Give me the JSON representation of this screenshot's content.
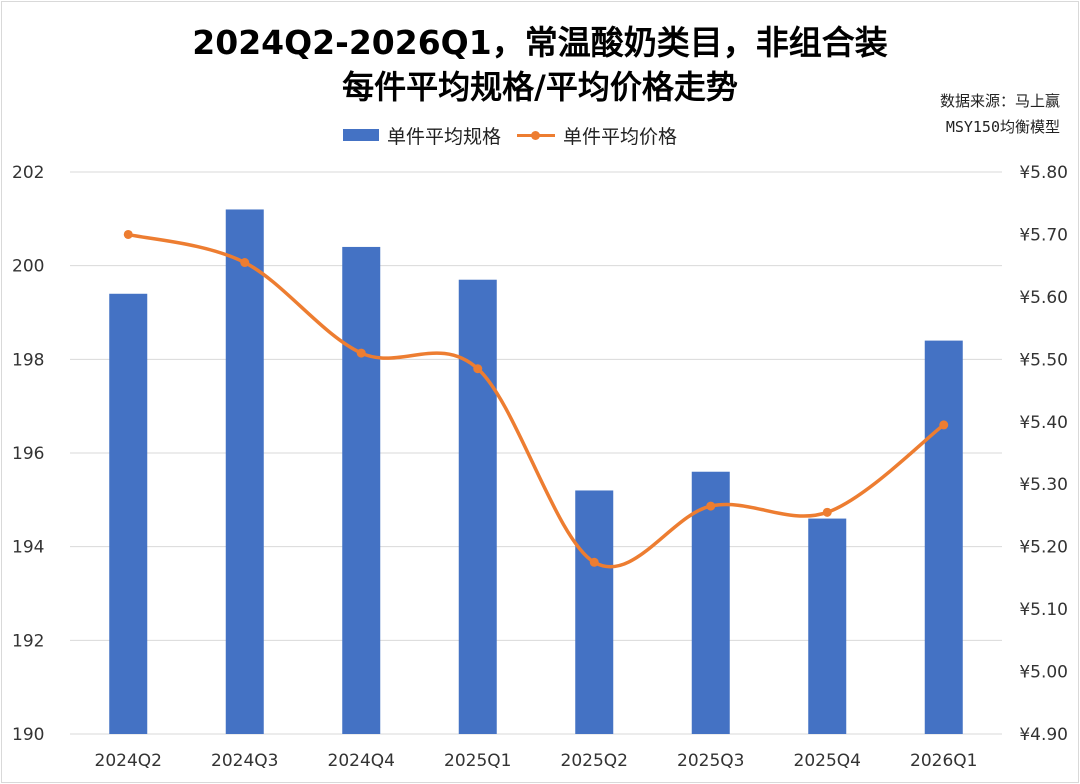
{
  "title": {
    "line1": "2024Q2-2026Q1，常温酸奶类目，非组合装",
    "line2": "每件平均规格/平均价格走势"
  },
  "source": {
    "line1": "数据来源：马上赢",
    "line2": "MSY150均衡模型"
  },
  "legend": {
    "bar_label": "单件平均规格",
    "line_label": "单件平均价格"
  },
  "colors": {
    "bar": "#4472c4",
    "line": "#ed7d31",
    "grid": "#d9d9d9"
  },
  "chart_data": {
    "type": "bar",
    "categories": [
      "2024Q2",
      "2024Q3",
      "2024Q4",
      "2025Q1",
      "2025Q2",
      "2025Q3",
      "2025Q4",
      "2026Q1"
    ],
    "series": [
      {
        "name": "单件平均规格",
        "type": "bar",
        "axis": "left",
        "values": [
          199.4,
          201.2,
          200.4,
          199.7,
          195.2,
          195.6,
          194.6,
          198.4
        ]
      },
      {
        "name": "单件平均价格",
        "type": "line",
        "smooth": true,
        "axis": "right",
        "values": [
          5.7,
          5.655,
          5.51,
          5.485,
          5.175,
          5.265,
          5.255,
          5.395
        ]
      }
    ],
    "y_left": {
      "min": 190,
      "max": 202,
      "ticks": [
        "190",
        "192",
        "194",
        "196",
        "198",
        "200",
        "202"
      ]
    },
    "y_right": {
      "min": 4.9,
      "max": 5.8,
      "ticks": [
        "¥4.90",
        "¥5.00",
        "¥5.10",
        "¥5.20",
        "¥5.30",
        "¥5.40",
        "¥5.50",
        "¥5.60",
        "¥5.70",
        "¥5.80"
      ]
    },
    "grid": true,
    "legend_position": "top"
  }
}
